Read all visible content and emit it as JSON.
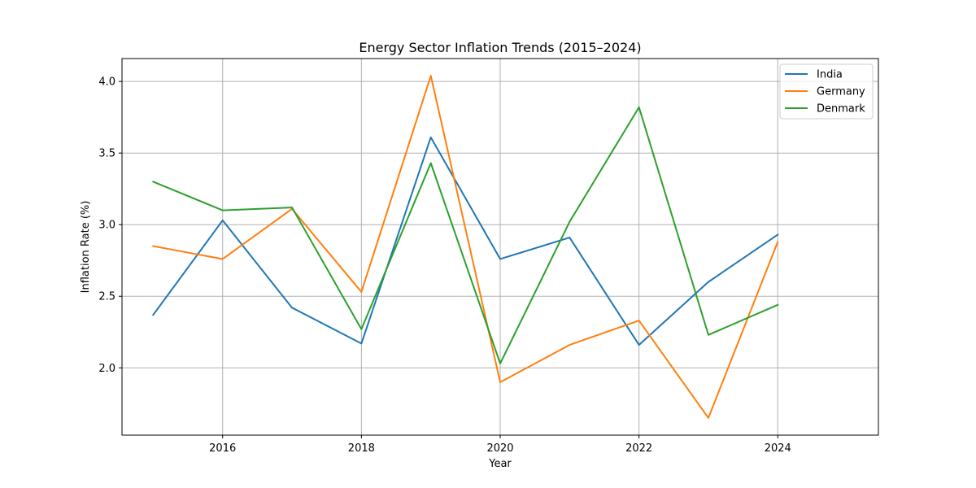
{
  "chart_data": {
    "type": "line",
    "title": "Energy Sector Inflation Trends (2015–2024)",
    "xlabel": "Year",
    "ylabel": "Inflation Rate (%)",
    "x": [
      2015,
      2016,
      2017,
      2018,
      2019,
      2020,
      2021,
      2022,
      2023,
      2024
    ],
    "xlim": [
      2014.55,
      2025.45
    ],
    "ylim": [
      1.53,
      4.16
    ],
    "xticks": [
      2016,
      2018,
      2020,
      2022,
      2024
    ],
    "yticks": [
      2.0,
      2.5,
      3.0,
      3.5,
      4.0
    ],
    "xtick_labels": [
      "2016",
      "2018",
      "2020",
      "2022",
      "2024"
    ],
    "ytick_labels": [
      "2.0",
      "2.5",
      "3.0",
      "3.5",
      "4.0"
    ],
    "grid": true,
    "legend_position": "top-right",
    "series": [
      {
        "name": "India",
        "color": "#1f77b4",
        "values": [
          2.37,
          3.03,
          2.42,
          2.17,
          3.61,
          2.76,
          2.91,
          2.16,
          2.6,
          2.93
        ]
      },
      {
        "name": "Germany",
        "color": "#ff7f0e",
        "values": [
          2.85,
          2.76,
          3.11,
          2.53,
          4.04,
          1.9,
          2.16,
          2.33,
          1.65,
          2.88
        ]
      },
      {
        "name": "Denmark",
        "color": "#2ca02c",
        "values": [
          3.3,
          3.1,
          3.12,
          2.27,
          3.43,
          2.03,
          3.02,
          3.82,
          2.23,
          2.44
        ]
      }
    ]
  }
}
